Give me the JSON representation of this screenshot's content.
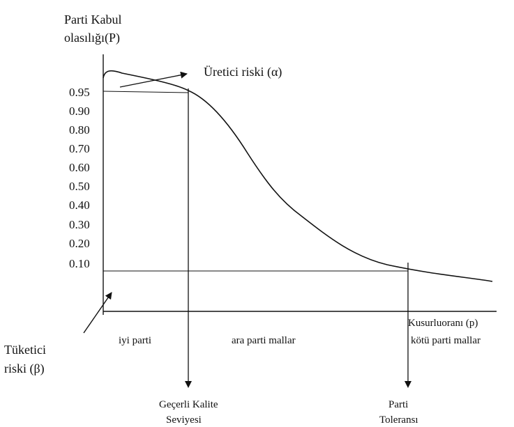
{
  "labels": {
    "y_title_line1": "Parti Kabul",
    "y_title_line2": "olasılığı(P)",
    "producer_risk": "Üretici riski (α)",
    "consumer_risk_line1": "Tüketici",
    "consumer_risk_line2": "riski (β)",
    "x_title": "Kusurluoranı (p)",
    "region_good": "iyi parti",
    "region_mid": "ara parti mallar",
    "region_bad": "kötü parti mallar",
    "aql_line1": "Geçerli Kalite",
    "aql_line2": "Seviyesi",
    "ltpd_line1": "Parti",
    "ltpd_line2": "Toleransı"
  },
  "y_ticks": [
    "0.95",
    "0.90",
    "0.80",
    "0.70",
    "0.60",
    "0.50",
    "0.40",
    "0.30",
    "0.20",
    "0.10"
  ],
  "colors": {
    "ink": "#111111",
    "background": "#ffffff"
  }
}
